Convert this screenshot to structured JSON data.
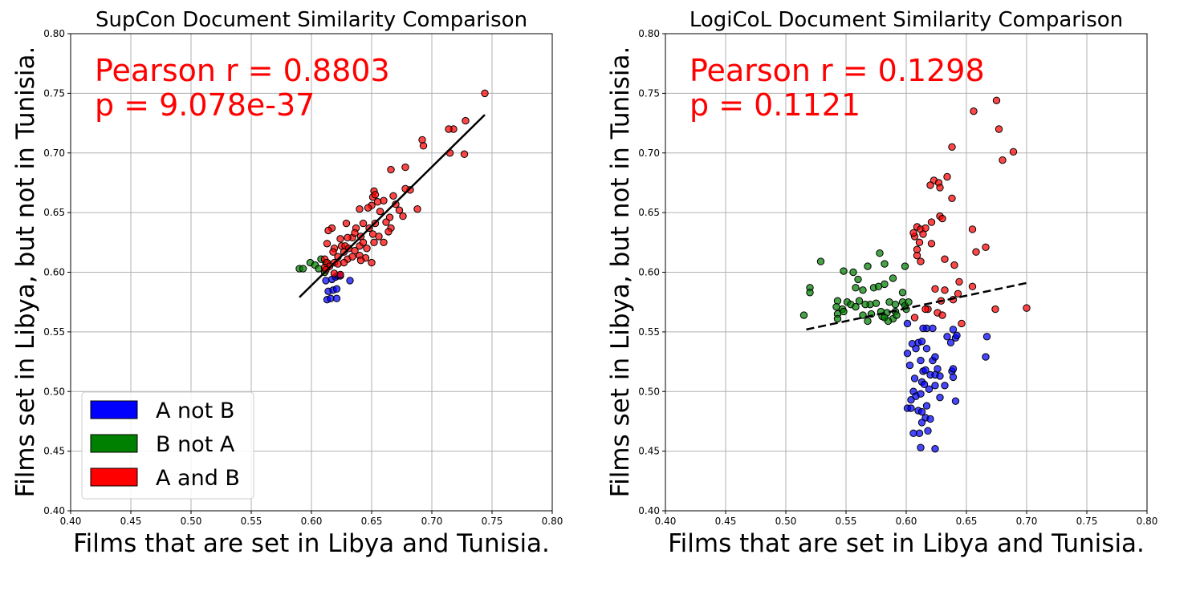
{
  "chart_data": [
    {
      "type": "scatter",
      "title": "SupCon Document Similarity Comparison",
      "xlabel": "Films that are set in Libya and Tunisia.",
      "ylabel": "Films set in Libya, but not in Tunisia.",
      "xlim": [
        0.4,
        0.8
      ],
      "ylim": [
        0.4,
        0.8
      ],
      "x_ticks": [
        "0.40",
        "0.45",
        "0.50",
        "0.55",
        "0.60",
        "0.65",
        "0.70",
        "0.75",
        "0.80"
      ],
      "y_ticks": [
        "0.40",
        "0.45",
        "0.50",
        "0.55",
        "0.60",
        "0.65",
        "0.70",
        "0.75",
        "0.80"
      ],
      "grid": true,
      "annotation": [
        "Pearson r = 0.8803",
        "p = 9.078e-37"
      ],
      "annotation_color": "#ff0000",
      "legend_position": "lower-left",
      "legend": [
        {
          "label": "A not B",
          "color": "#0000ff"
        },
        {
          "label": "B not A",
          "color": "#008000"
        },
        {
          "label": "A and B",
          "color": "#ff0000"
        }
      ],
      "fit_line": {
        "x": [
          0.59,
          0.744
        ],
        "y": [
          0.579,
          0.732
        ],
        "style": "solid"
      },
      "series": [
        {
          "name": "A not B",
          "color": "#0000ff",
          "points": [
            [
              0.612,
              0.593
            ],
            [
              0.617,
              0.594
            ],
            [
              0.62,
              0.596
            ],
            [
              0.622,
              0.597
            ],
            [
              0.632,
              0.593
            ],
            [
              0.614,
              0.584
            ],
            [
              0.618,
              0.585
            ],
            [
              0.621,
              0.586
            ],
            [
              0.613,
              0.577
            ],
            [
              0.616,
              0.578
            ],
            [
              0.621,
              0.578
            ],
            [
              0.624,
              0.597
            ]
          ]
        },
        {
          "name": "B not A",
          "color": "#008000",
          "points": [
            [
              0.59,
              0.603
            ],
            [
              0.593,
              0.603
            ],
            [
              0.599,
              0.608
            ],
            [
              0.603,
              0.606
            ],
            [
              0.608,
              0.611
            ],
            [
              0.612,
              0.608
            ],
            [
              0.606,
              0.603
            ],
            [
              0.611,
              0.6
            ]
          ]
        },
        {
          "name": "A and B",
          "color": "#ff0000",
          "points": [
            [
              0.744,
              0.75
            ],
            [
              0.728,
              0.727
            ],
            [
              0.718,
              0.72
            ],
            [
              0.714,
              0.72
            ],
            [
              0.715,
              0.7
            ],
            [
              0.727,
              0.699
            ],
            [
              0.692,
              0.711
            ],
            [
              0.693,
              0.706
            ],
            [
              0.678,
              0.688
            ],
            [
              0.666,
              0.686
            ],
            [
              0.682,
              0.669
            ],
            [
              0.678,
              0.67
            ],
            [
              0.668,
              0.664
            ],
            [
              0.66,
              0.66
            ],
            [
              0.652,
              0.668
            ],
            [
              0.651,
              0.663
            ],
            [
              0.653,
              0.665
            ],
            [
              0.655,
              0.659
            ],
            [
              0.65,
              0.656
            ],
            [
              0.64,
              0.653
            ],
            [
              0.647,
              0.654
            ],
            [
              0.67,
              0.657
            ],
            [
              0.673,
              0.652
            ],
            [
              0.688,
              0.653
            ],
            [
              0.676,
              0.647
            ],
            [
              0.657,
              0.651
            ],
            [
              0.665,
              0.646
            ],
            [
              0.662,
              0.642
            ],
            [
              0.653,
              0.641
            ],
            [
              0.643,
              0.641
            ],
            [
              0.629,
              0.641
            ],
            [
              0.617,
              0.637
            ],
            [
              0.614,
              0.635
            ],
            [
              0.637,
              0.637
            ],
            [
              0.648,
              0.637
            ],
            [
              0.666,
              0.637
            ],
            [
              0.664,
              0.634
            ],
            [
              0.656,
              0.63
            ],
            [
              0.651,
              0.632
            ],
            [
              0.641,
              0.63
            ],
            [
              0.634,
              0.629
            ],
            [
              0.63,
              0.629
            ],
            [
              0.624,
              0.628
            ],
            [
              0.613,
              0.624
            ],
            [
              0.619,
              0.62
            ],
            [
              0.625,
              0.622
            ],
            [
              0.628,
              0.622
            ],
            [
              0.631,
              0.62
            ],
            [
              0.64,
              0.622
            ],
            [
              0.643,
              0.625
            ],
            [
              0.652,
              0.625
            ],
            [
              0.66,
              0.625
            ],
            [
              0.646,
              0.62
            ],
            [
              0.636,
              0.618
            ],
            [
              0.627,
              0.617
            ],
            [
              0.618,
              0.617
            ],
            [
              0.622,
              0.613
            ],
            [
              0.611,
              0.611
            ],
            [
              0.613,
              0.608
            ],
            [
              0.619,
              0.608
            ],
            [
              0.63,
              0.611
            ],
            [
              0.634,
              0.613
            ],
            [
              0.64,
              0.614
            ],
            [
              0.645,
              0.612
            ],
            [
              0.641,
              0.61
            ],
            [
              0.627,
              0.608
            ],
            [
              0.622,
              0.607
            ],
            [
              0.615,
              0.605
            ],
            [
              0.611,
              0.604
            ],
            [
              0.612,
              0.602
            ],
            [
              0.65,
              0.608
            ],
            [
              0.624,
              0.598
            ],
            [
              0.619,
              0.599
            ],
            [
              0.636,
              0.633
            ]
          ]
        }
      ]
    },
    {
      "type": "scatter",
      "title": "LogiCoL Document Similarity Comparison",
      "xlabel": "Films that are set in Libya and Tunisia.",
      "ylabel": "Films set in Libya, but not in Tunisia.",
      "xlim": [
        0.4,
        0.8
      ],
      "ylim": [
        0.4,
        0.8
      ],
      "x_ticks": [
        "0.40",
        "0.45",
        "0.50",
        "0.55",
        "0.60",
        "0.65",
        "0.70",
        "0.75",
        "0.80"
      ],
      "y_ticks": [
        "0.40",
        "0.45",
        "0.50",
        "0.55",
        "0.60",
        "0.65",
        "0.70",
        "0.75",
        "0.80"
      ],
      "grid": true,
      "annotation": [
        "Pearson r = 0.1298",
        "p = 0.1121"
      ],
      "annotation_color": "#ff0000",
      "fit_line": {
        "x": [
          0.517,
          0.7
        ],
        "y": [
          0.552,
          0.591
        ],
        "style": "dashed"
      },
      "series": [
        {
          "name": "A not B",
          "color": "#0000ff",
          "points": [
            [
              0.601,
              0.557
            ],
            [
              0.617,
              0.553
            ],
            [
              0.614,
              0.553
            ],
            [
              0.622,
              0.553
            ],
            [
              0.634,
              0.546
            ],
            [
              0.639,
              0.552
            ],
            [
              0.641,
              0.545
            ],
            [
              0.637,
              0.541
            ],
            [
              0.642,
              0.547
            ],
            [
              0.667,
              0.546
            ],
            [
              0.601,
              0.532
            ],
            [
              0.605,
              0.54
            ],
            [
              0.608,
              0.536
            ],
            [
              0.61,
              0.541
            ],
            [
              0.613,
              0.542
            ],
            [
              0.617,
              0.536
            ],
            [
              0.612,
              0.526
            ],
            [
              0.622,
              0.526
            ],
            [
              0.624,
              0.529
            ],
            [
              0.603,
              0.522
            ],
            [
              0.614,
              0.517
            ],
            [
              0.616,
              0.518
            ],
            [
              0.62,
              0.514
            ],
            [
              0.624,
              0.514
            ],
            [
              0.626,
              0.519
            ],
            [
              0.628,
              0.513
            ],
            [
              0.638,
              0.517
            ],
            [
              0.639,
              0.519
            ],
            [
              0.666,
              0.529
            ],
            [
              0.607,
              0.511
            ],
            [
              0.606,
              0.5
            ],
            [
              0.613,
              0.508
            ],
            [
              0.615,
              0.506
            ],
            [
              0.619,
              0.502
            ],
            [
              0.624,
              0.505
            ],
            [
              0.632,
              0.505
            ],
            [
              0.639,
              0.512
            ],
            [
              0.604,
              0.493
            ],
            [
              0.608,
              0.496
            ],
            [
              0.612,
              0.498
            ],
            [
              0.617,
              0.488
            ],
            [
              0.628,
              0.495
            ],
            [
              0.641,
              0.492
            ],
            [
              0.601,
              0.486
            ],
            [
              0.604,
              0.486
            ],
            [
              0.61,
              0.484
            ],
            [
              0.613,
              0.483
            ],
            [
              0.616,
              0.478
            ],
            [
              0.62,
              0.477
            ],
            [
              0.606,
              0.465
            ],
            [
              0.611,
              0.465
            ],
            [
              0.613,
              0.474
            ],
            [
              0.618,
              0.467
            ],
            [
              0.612,
              0.453
            ],
            [
              0.624,
              0.452
            ]
          ]
        },
        {
          "name": "B not A",
          "color": "#008000",
          "points": [
            [
              0.529,
              0.609
            ],
            [
              0.578,
              0.616
            ],
            [
              0.582,
              0.607
            ],
            [
              0.568,
              0.605
            ],
            [
              0.599,
              0.605
            ],
            [
              0.548,
              0.601
            ],
            [
              0.556,
              0.6
            ],
            [
              0.589,
              0.595
            ],
            [
              0.56,
              0.594
            ],
            [
              0.573,
              0.587
            ],
            [
              0.577,
              0.588
            ],
            [
              0.582,
              0.59
            ],
            [
              0.52,
              0.587
            ],
            [
              0.52,
              0.583
            ],
            [
              0.558,
              0.587
            ],
            [
              0.564,
              0.585
            ],
            [
              0.597,
              0.583
            ],
            [
              0.543,
              0.576
            ],
            [
              0.551,
              0.575
            ],
            [
              0.561,
              0.576
            ],
            [
              0.57,
              0.573
            ],
            [
              0.575,
              0.574
            ],
            [
              0.586,
              0.575
            ],
            [
              0.591,
              0.573
            ],
            [
              0.597,
              0.575
            ],
            [
              0.542,
              0.571
            ],
            [
              0.547,
              0.569
            ],
            [
              0.554,
              0.573
            ],
            [
              0.558,
              0.571
            ],
            [
              0.566,
              0.573
            ],
            [
              0.579,
              0.567
            ],
            [
              0.584,
              0.566
            ],
            [
              0.591,
              0.567
            ],
            [
              0.599,
              0.572
            ],
            [
              0.543,
              0.565
            ],
            [
              0.548,
              0.567
            ],
            [
              0.564,
              0.564
            ],
            [
              0.568,
              0.559
            ],
            [
              0.58,
              0.563
            ],
            [
              0.582,
              0.562
            ],
            [
              0.589,
              0.561
            ],
            [
              0.592,
              0.564
            ],
            [
              0.515,
              0.564
            ],
            [
              0.543,
              0.561
            ],
            [
              0.585,
              0.559
            ],
            [
              0.6,
              0.569
            ],
            [
              0.602,
              0.575
            ],
            [
              0.571,
              0.565
            ]
          ]
        },
        {
          "name": "A and B",
          "color": "#ff0000",
          "points": [
            [
              0.675,
              0.744
            ],
            [
              0.656,
              0.735
            ],
            [
              0.677,
              0.72
            ],
            [
              0.689,
              0.701
            ],
            [
              0.68,
              0.694
            ],
            [
              0.638,
              0.705
            ],
            [
              0.634,
              0.68
            ],
            [
              0.623,
              0.677
            ],
            [
              0.627,
              0.675
            ],
            [
              0.62,
              0.673
            ],
            [
              0.628,
              0.671
            ],
            [
              0.638,
              0.662
            ],
            [
              0.628,
              0.647
            ],
            [
              0.63,
              0.645
            ],
            [
              0.621,
              0.642
            ],
            [
              0.609,
              0.638
            ],
            [
              0.612,
              0.636
            ],
            [
              0.616,
              0.637
            ],
            [
              0.614,
              0.632
            ],
            [
              0.607,
              0.63
            ],
            [
              0.611,
              0.625
            ],
            [
              0.621,
              0.624
            ],
            [
              0.609,
              0.619
            ],
            [
              0.609,
              0.614
            ],
            [
              0.612,
              0.609
            ],
            [
              0.632,
              0.611
            ],
            [
              0.64,
              0.606
            ],
            [
              0.658,
              0.617
            ],
            [
              0.666,
              0.621
            ],
            [
              0.655,
              0.636
            ],
            [
              0.606,
              0.633
            ],
            [
              0.644,
              0.592
            ],
            [
              0.655,
              0.588
            ],
            [
              0.624,
              0.586
            ],
            [
              0.632,
              0.585
            ],
            [
              0.643,
              0.582
            ],
            [
              0.629,
              0.576
            ],
            [
              0.618,
              0.569
            ],
            [
              0.616,
              0.569
            ],
            [
              0.607,
              0.562
            ],
            [
              0.626,
              0.566
            ],
            [
              0.63,
              0.564
            ],
            [
              0.639,
              0.577
            ],
            [
              0.646,
              0.557
            ],
            [
              0.674,
              0.569
            ],
            [
              0.7,
              0.57
            ]
          ]
        }
      ]
    }
  ]
}
